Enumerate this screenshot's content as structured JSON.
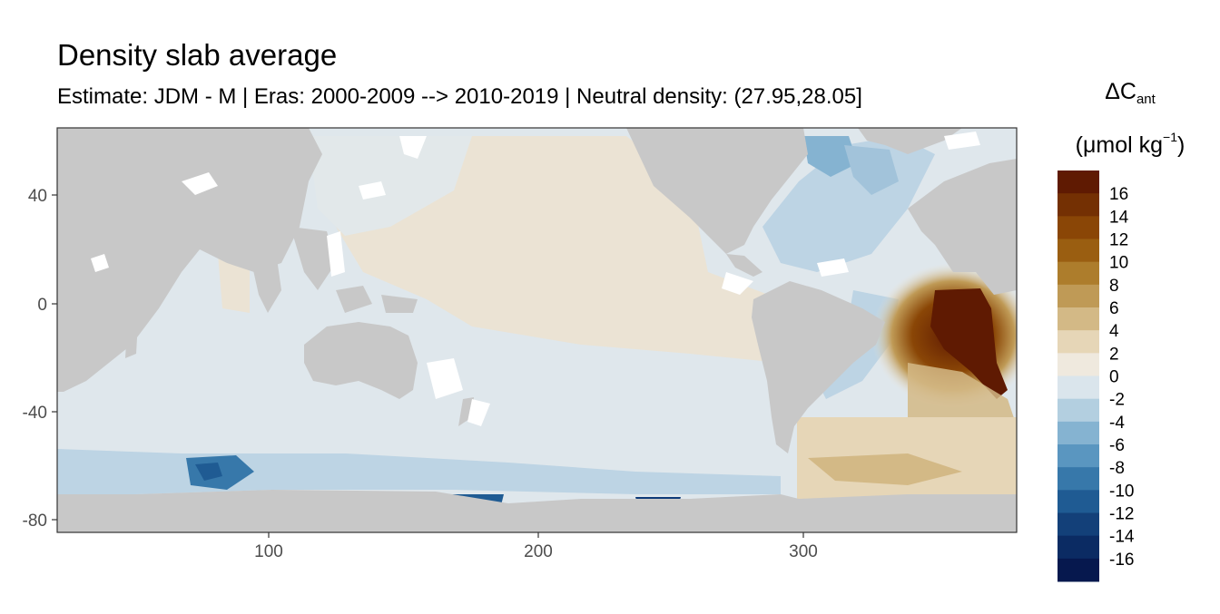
{
  "title": "Density slab average",
  "subtitle": "Estimate: JDM - M | Eras: 2000-2009 --> 2010-2019 | Neutral density: (27.95,28.05]",
  "legend": {
    "title_main": "ΔC",
    "title_sub": "ant",
    "unit_prefix": "(μmol kg",
    "unit_exp": "−1",
    "unit_suffix": ")",
    "ticks": [
      "16",
      "14",
      "12",
      "10",
      "8",
      "6",
      "4",
      "2",
      "0",
      "-2",
      "-4",
      "-6",
      "-8",
      "-10",
      "-12",
      "-14",
      "-16"
    ],
    "colors": [
      "#5f1a02",
      "#743003",
      "#8a4606",
      "#9a5e11",
      "#ad7d2c",
      "#bf9a56",
      "#d3b986",
      "#e6d6b7",
      "#efe9de",
      "#dae5ec",
      "#b3cfe0",
      "#85b3d1",
      "#5a96c0",
      "#3778aa",
      "#1f5b93",
      "#134079",
      "#0b2b63",
      "#06184e"
    ]
  },
  "axes": {
    "x_ticks": [
      "100",
      "200",
      "300"
    ],
    "y_ticks": [
      "40",
      "0",
      "-40",
      "-80"
    ],
    "x_range": [
      20,
      382
    ],
    "y_range": [
      -85,
      65
    ]
  },
  "colors": {
    "land": "#c8c8c8",
    "background": "#ffffff",
    "near_zero": "#dfe7ec",
    "warm_light": "#ebe3d4",
    "cold_light": "#bdd4e4",
    "strong_positive": "#5f1a02",
    "strong_negative": "#0d3a78"
  }
}
